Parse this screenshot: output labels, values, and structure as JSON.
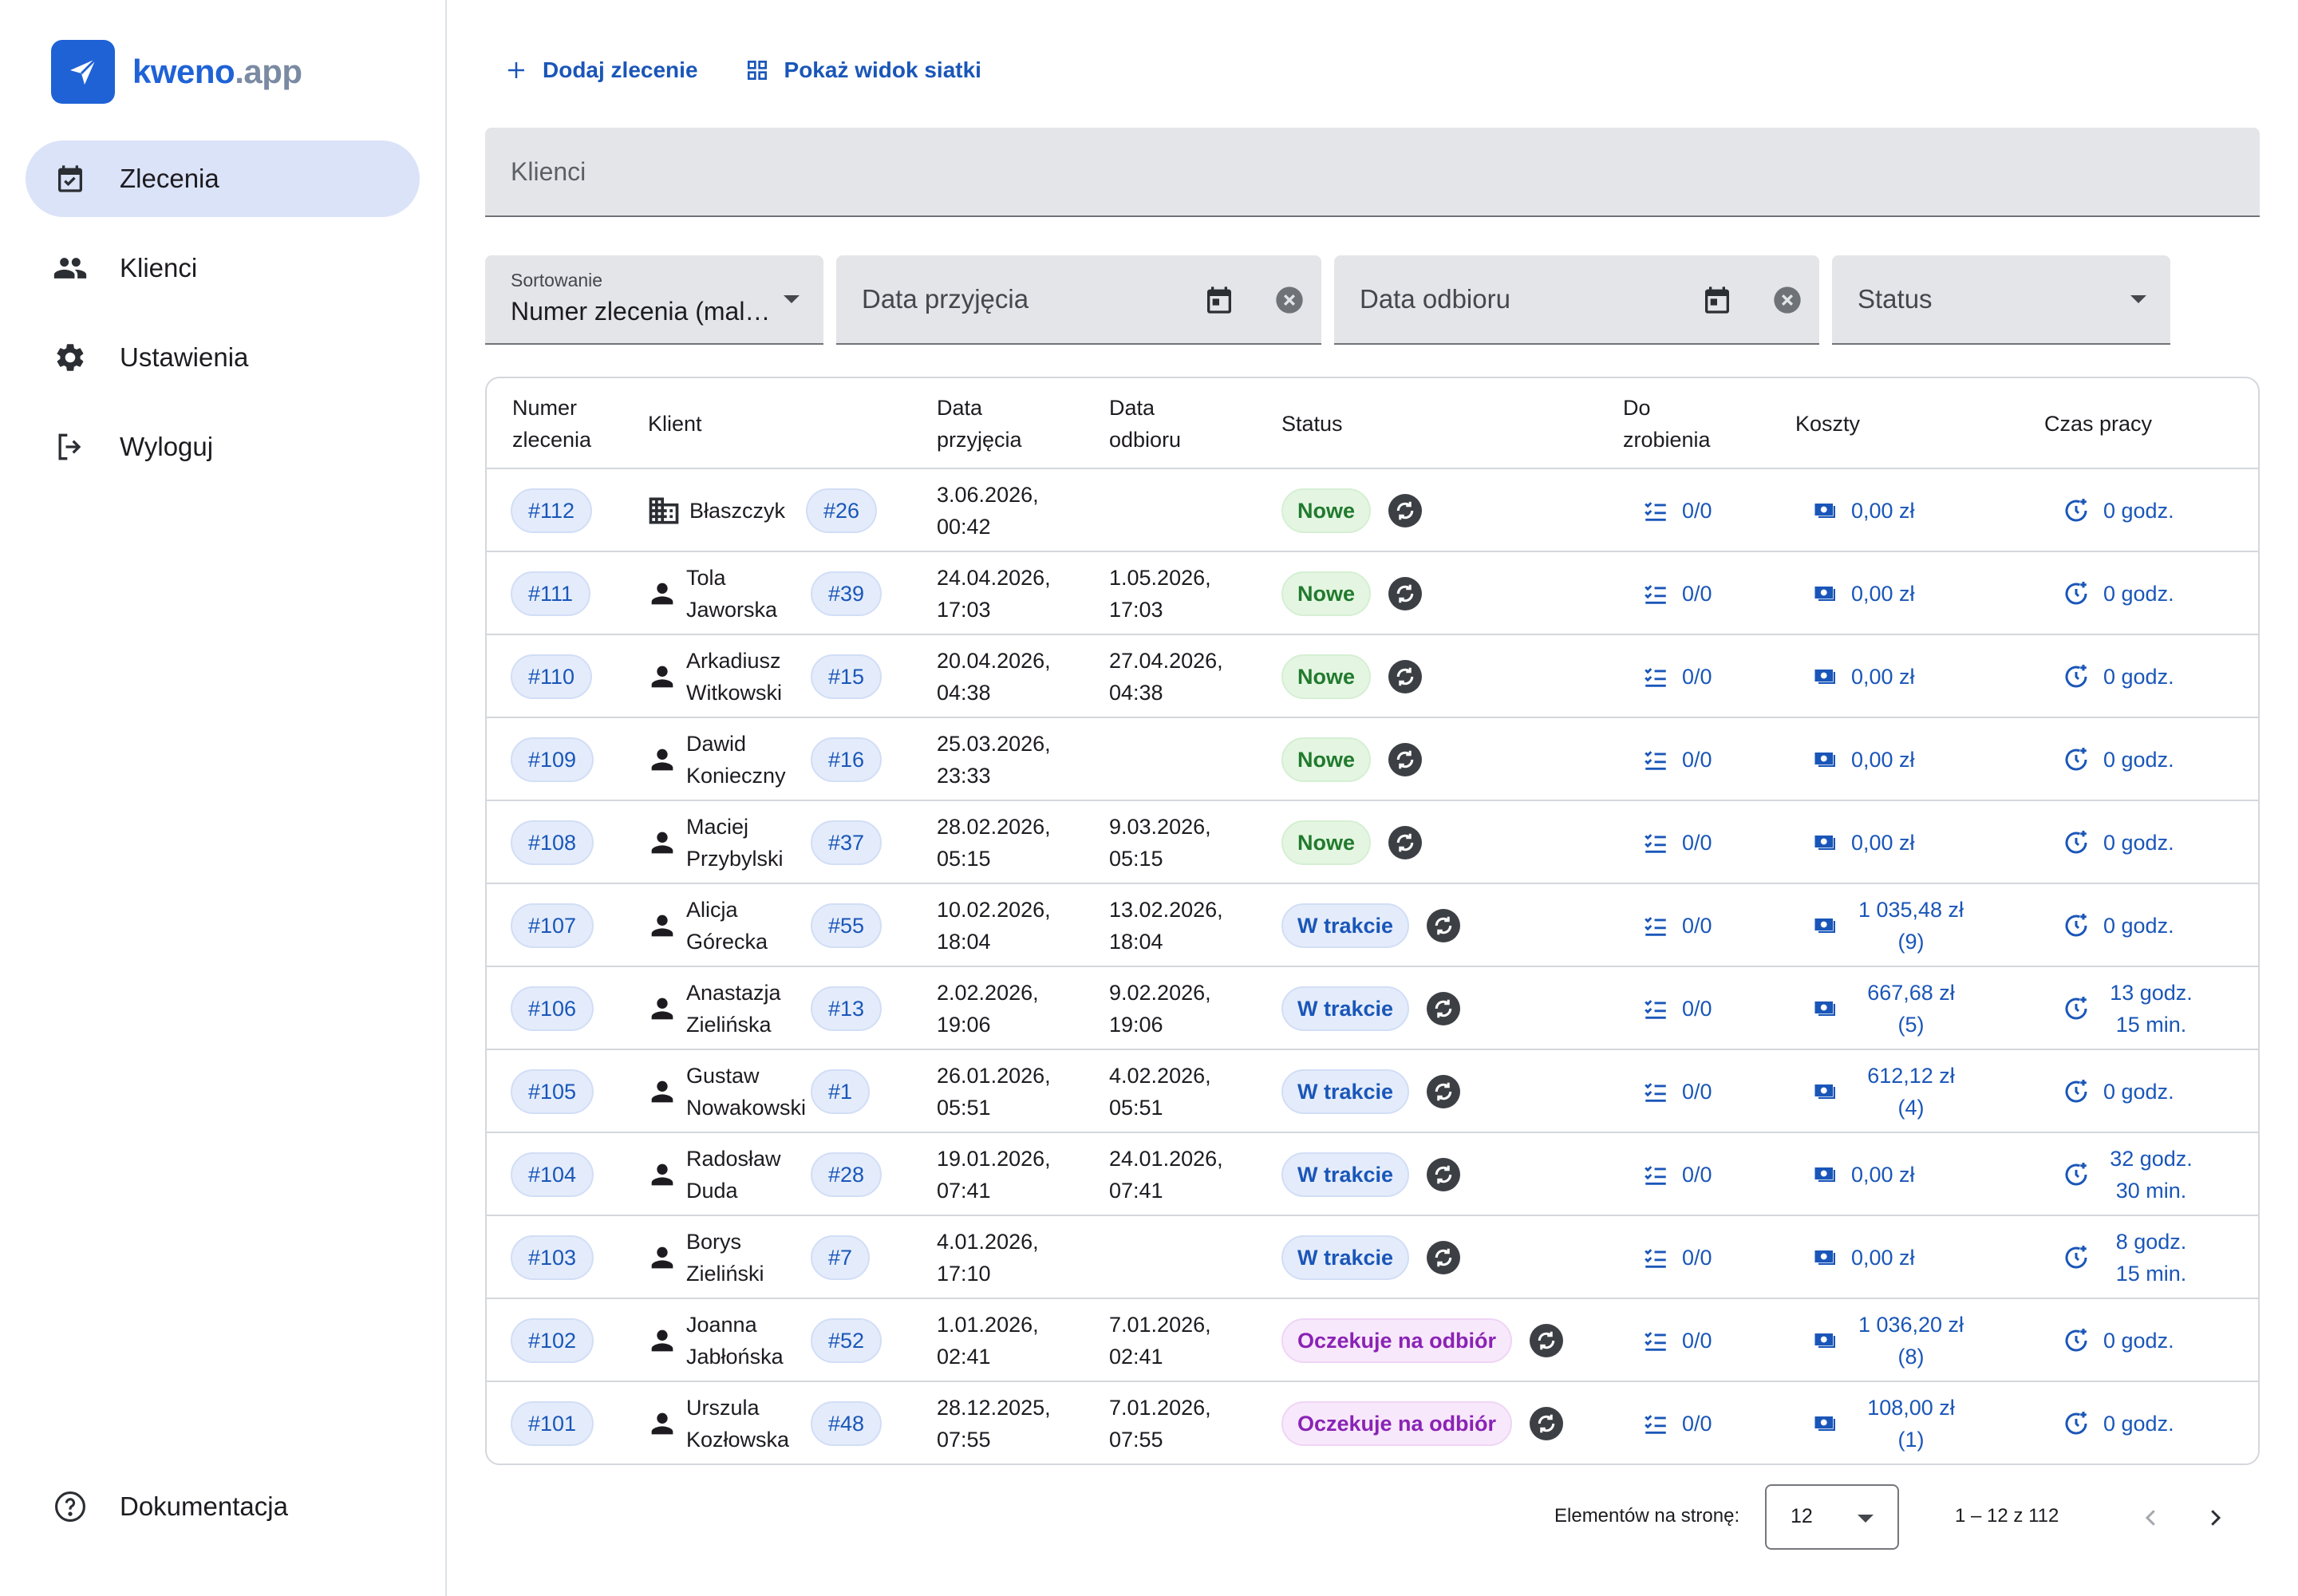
{
  "brand": {
    "name_main": "kweno",
    "name_suffix": ".app",
    "accent": "#1f62d6"
  },
  "sidebar": {
    "items": [
      {
        "label": "Zlecenia",
        "icon": "calendar-check-icon",
        "active": true
      },
      {
        "label": "Klienci",
        "icon": "people-icon"
      },
      {
        "label": "Ustawienia",
        "icon": "gear-icon"
      },
      {
        "label": "Wyloguj",
        "icon": "logout-icon"
      }
    ],
    "bottom": {
      "label": "Dokumentacja",
      "icon": "help-circle-icon"
    }
  },
  "toolbar": {
    "add_label": "Dodaj zlecenie",
    "grid_label": "Pokaż widok siatki"
  },
  "search": {
    "placeholder": "Klienci"
  },
  "filters": {
    "sort": {
      "label": "Sortowanie",
      "value": "Numer zlecenia (malejąco)"
    },
    "date_received": {
      "placeholder": "Data przyjęcia"
    },
    "date_pickup": {
      "placeholder": "Data odbioru"
    },
    "status": {
      "placeholder": "Status"
    }
  },
  "table": {
    "headers": {
      "number": "Numer zlecenia",
      "client": "Klient",
      "received": "Data przyjęcia",
      "pickup": "Data odbioru",
      "status": "Status",
      "todo": "Do zrobienia",
      "costs": "Koszty",
      "worktime": "Czas pracy"
    },
    "rows": [
      {
        "id": "#112",
        "client_type": "company",
        "client": "Błaszczyk",
        "client_id": "#26",
        "received": "3.06.2026, 00:42",
        "pickup": "",
        "status": "Nowe",
        "status_kind": "new",
        "todo": "0/0",
        "costs": "0,00 zł",
        "worktime": "0 godz."
      },
      {
        "id": "#111",
        "client_type": "person",
        "client": "Tola Jaworska",
        "client_id": "#39",
        "received": "24.04.2026, 17:03",
        "pickup": "1.05.2026, 17:03",
        "status": "Nowe",
        "status_kind": "new",
        "todo": "0/0",
        "costs": "0,00 zł",
        "worktime": "0 godz."
      },
      {
        "id": "#110",
        "client_type": "person",
        "client": "Arkadiusz Witkowski",
        "client_id": "#15",
        "received": "20.04.2026, 04:38",
        "pickup": "27.04.2026, 04:38",
        "status": "Nowe",
        "status_kind": "new",
        "todo": "0/0",
        "costs": "0,00 zł",
        "worktime": "0 godz."
      },
      {
        "id": "#109",
        "client_type": "person",
        "client": "Dawid Konieczny",
        "client_id": "#16",
        "received": "25.03.2026, 23:33",
        "pickup": "",
        "status": "Nowe",
        "status_kind": "new",
        "todo": "0/0",
        "costs": "0,00 zł",
        "worktime": "0 godz."
      },
      {
        "id": "#108",
        "client_type": "person",
        "client": "Maciej Przybylski",
        "client_id": "#37",
        "received": "28.02.2026, 05:15",
        "pickup": "9.03.2026, 05:15",
        "status": "Nowe",
        "status_kind": "new",
        "todo": "0/0",
        "costs": "0,00 zł",
        "worktime": "0 godz."
      },
      {
        "id": "#107",
        "client_type": "person",
        "client": "Alicja Górecka",
        "client_id": "#55",
        "received": "10.02.2026, 18:04",
        "pickup": "13.02.2026, 18:04",
        "status": "W trakcie",
        "status_kind": "progress",
        "todo": "0/0",
        "costs": "1 035,48 zł (9)",
        "worktime": "0 godz."
      },
      {
        "id": "#106",
        "client_type": "person",
        "client": "Anastazja Zielińska",
        "client_id": "#13",
        "received": "2.02.2026, 19:06",
        "pickup": "9.02.2026, 19:06",
        "status": "W trakcie",
        "status_kind": "progress",
        "todo": "0/0",
        "costs": "667,68 zł (5)",
        "worktime": "13 godz. 15 min."
      },
      {
        "id": "#105",
        "client_type": "person",
        "client": "Gustaw Nowakowski",
        "client_id": "#1",
        "received": "26.01.2026, 05:51",
        "pickup": "4.02.2026, 05:51",
        "status": "W trakcie",
        "status_kind": "progress",
        "todo": "0/0",
        "costs": "612,12 zł (4)",
        "worktime": "0 godz."
      },
      {
        "id": "#104",
        "client_type": "person",
        "client": "Radosław Duda",
        "client_id": "#28",
        "received": "19.01.2026, 07:41",
        "pickup": "24.01.2026, 07:41",
        "status": "W trakcie",
        "status_kind": "progress",
        "todo": "0/0",
        "costs": "0,00 zł",
        "worktime": "32 godz. 30 min."
      },
      {
        "id": "#103",
        "client_type": "person",
        "client": "Borys Zieliński",
        "client_id": "#7",
        "received": "4.01.2026, 17:10",
        "pickup": "",
        "status": "W trakcie",
        "status_kind": "progress",
        "todo": "0/0",
        "costs": "0,00 zł",
        "worktime": "8 godz. 15 min."
      },
      {
        "id": "#102",
        "client_type": "person",
        "client": "Joanna Jabłońska",
        "client_id": "#52",
        "received": "1.01.2026, 02:41",
        "pickup": "7.01.2026, 02:41",
        "status": "Oczekuje na odbiór",
        "status_kind": "wait",
        "todo": "0/0",
        "costs": "1 036,20 zł (8)",
        "worktime": "0 godz."
      },
      {
        "id": "#101",
        "client_type": "person",
        "client": "Urszula Kozłowska",
        "client_id": "#48",
        "received": "28.12.2025, 07:55",
        "pickup": "7.01.2026, 07:55",
        "status": "Oczekuje na odbiór",
        "status_kind": "wait",
        "todo": "0/0",
        "costs": "108,00 zł (1)",
        "worktime": "0 godz."
      }
    ]
  },
  "pagination": {
    "per_page_label": "Elementów na stronę:",
    "per_page": "12",
    "range": "1 – 12 z 112"
  },
  "colors": {
    "accent": "#1a56b8",
    "new": "#227a2e",
    "progress": "#1a56b8",
    "wait": "#8a23b5"
  }
}
